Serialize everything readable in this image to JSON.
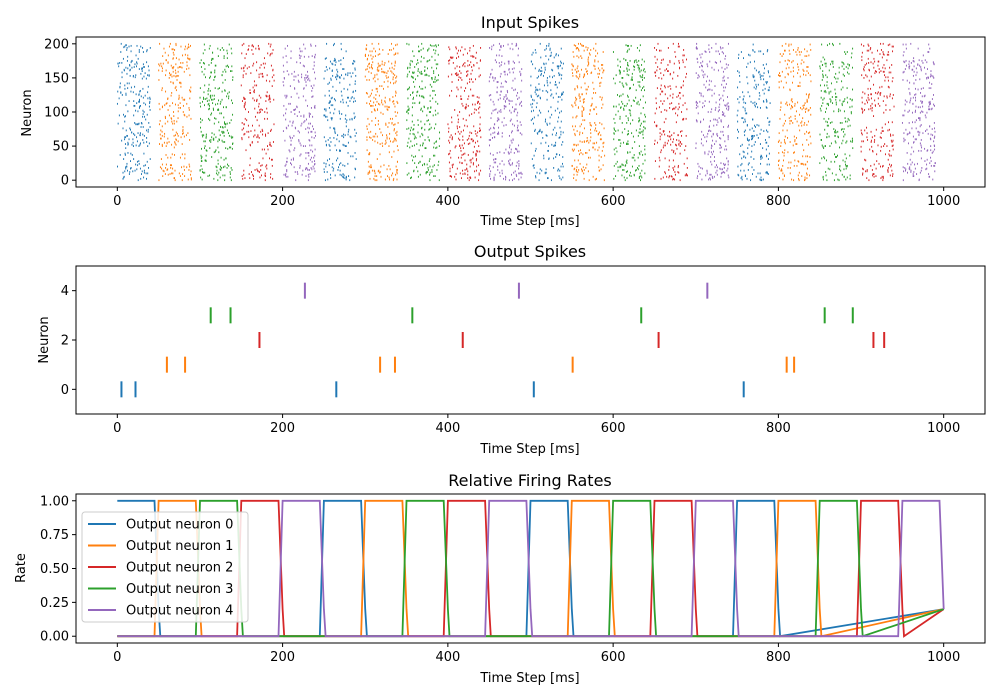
{
  "colors": [
    "#1f77b4",
    "#ff7f0e",
    "#d62728",
    "#2ca02c",
    "#9467bd"
  ],
  "chart_data": [
    {
      "type": "scatter",
      "title": "Input Spikes",
      "xlabel": "Time Step [ms]",
      "ylabel": "Neuron",
      "xlim": [
        -50,
        1050
      ],
      "ylim": [
        -10,
        210
      ],
      "xticks": [
        0,
        200,
        400,
        600,
        800,
        1000
      ],
      "yticks": [
        0,
        50,
        100,
        150,
        200
      ],
      "pattern_window_ms": 40,
      "pattern_period_ms": 50,
      "window_starts": [
        0,
        50,
        100,
        150,
        200,
        250,
        300,
        350,
        400,
        450,
        500,
        550,
        600,
        650,
        700,
        750,
        800,
        850,
        900,
        950
      ],
      "window_colors": [
        0,
        1,
        3,
        2,
        4,
        0,
        1,
        3,
        2,
        4,
        0,
        1,
        3,
        2,
        4,
        0,
        1,
        3,
        2,
        4
      ]
    },
    {
      "type": "scatter",
      "title": "Output Spikes",
      "xlabel": "Time Step [ms]",
      "ylabel": "Neuron",
      "xlim": [
        -50,
        1050
      ],
      "ylim": [
        -1,
        5
      ],
      "xticks": [
        0,
        200,
        400,
        600,
        800,
        1000
      ],
      "yticks": [
        0,
        2,
        4
      ],
      "series": [
        {
          "neuron": 0,
          "color": "#1f77b4",
          "x": [
            5,
            22,
            265,
            504,
            758
          ]
        },
        {
          "neuron": 1,
          "color": "#ff7f0e",
          "x": [
            60,
            82,
            318,
            336,
            551,
            810,
            819
          ]
        },
        {
          "neuron": 2,
          "color": "#d62728",
          "x": [
            172,
            418,
            655,
            915,
            928
          ]
        },
        {
          "neuron": 3,
          "color": "#2ca02c",
          "x": [
            113,
            137,
            357,
            634,
            856,
            890
          ]
        },
        {
          "neuron": 4,
          "color": "#9467bd",
          "x": [
            227,
            486,
            714
          ]
        }
      ]
    },
    {
      "type": "line",
      "title": "Relative Firing Rates",
      "xlabel": "Time Step [ms]",
      "ylabel": "Rate",
      "xlim": [
        -50,
        1050
      ],
      "ylim": [
        -0.05,
        1.05
      ],
      "xticks": [
        0,
        200,
        400,
        600,
        800,
        1000
      ],
      "yticks": [
        0.0,
        0.25,
        0.5,
        0.75,
        1.0
      ],
      "ytick_labels": [
        "0.00",
        "0.25",
        "0.50",
        "0.75",
        "1.00"
      ],
      "legend_position": "left-center",
      "period_ms": 50,
      "active_ms": 45,
      "low_rate": 0.0,
      "tail_rate": 0.2,
      "series": [
        {
          "name": "Output neuron 0",
          "color": "#1f77b4",
          "active_starts": [
            0,
            250,
            500,
            750
          ]
        },
        {
          "name": "Output neuron 1",
          "color": "#ff7f0e",
          "active_starts": [
            50,
            300,
            550,
            800
          ]
        },
        {
          "name": "Output neuron 2",
          "color": "#d62728",
          "active_starts": [
            150,
            400,
            650,
            900
          ]
        },
        {
          "name": "Output neuron 3",
          "color": "#2ca02c",
          "active_starts": [
            100,
            350,
            600,
            850
          ]
        },
        {
          "name": "Output neuron 4",
          "color": "#9467bd",
          "active_starts": [
            200,
            450,
            700,
            950
          ]
        }
      ]
    }
  ]
}
